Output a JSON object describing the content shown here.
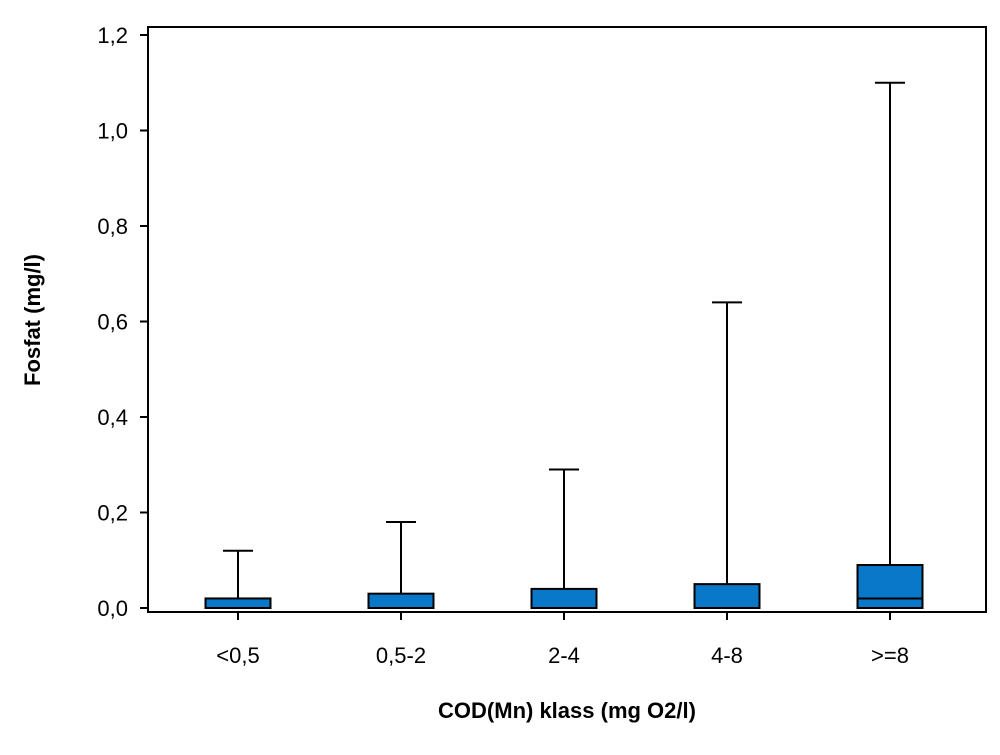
{
  "chart_data": {
    "type": "boxplot",
    "xlabel": "COD(Mn) klass (mg O2/l)",
    "ylabel": "Fosfat (mg/l)",
    "ylim": [
      0,
      1.2
    ],
    "yticks": [
      {
        "value": 0.0,
        "label": "0,0"
      },
      {
        "value": 0.2,
        "label": "0,2"
      },
      {
        "value": 0.4,
        "label": "0,4"
      },
      {
        "value": 0.6,
        "label": "0,6"
      },
      {
        "value": 0.8,
        "label": "0,8"
      },
      {
        "value": 1.0,
        "label": "1,0"
      },
      {
        "value": 1.2,
        "label": "1,2"
      }
    ],
    "categories": [
      "<0,5",
      "0,5-2",
      "2-4",
      "4-8",
      ">=8"
    ],
    "boxes": [
      {
        "category": "<0,5",
        "min": 0.0,
        "q1": 0.0,
        "median": 0.0,
        "q3": 0.02,
        "max": 0.12
      },
      {
        "category": "0,5-2",
        "min": 0.0,
        "q1": 0.0,
        "median": 0.0,
        "q3": 0.03,
        "max": 0.18
      },
      {
        "category": "2-4",
        "min": 0.0,
        "q1": 0.0,
        "median": 0.0,
        "q3": 0.04,
        "max": 0.29
      },
      {
        "category": "4-8",
        "min": 0.0,
        "q1": 0.0,
        "median": 0.0,
        "q3": 0.05,
        "max": 0.64
      },
      {
        "category": ">=8",
        "min": 0.0,
        "q1": 0.0,
        "median": 0.02,
        "q3": 0.09,
        "max": 1.1
      }
    ],
    "box_color": "#0a78c8",
    "grid": false,
    "legend": "none"
  }
}
